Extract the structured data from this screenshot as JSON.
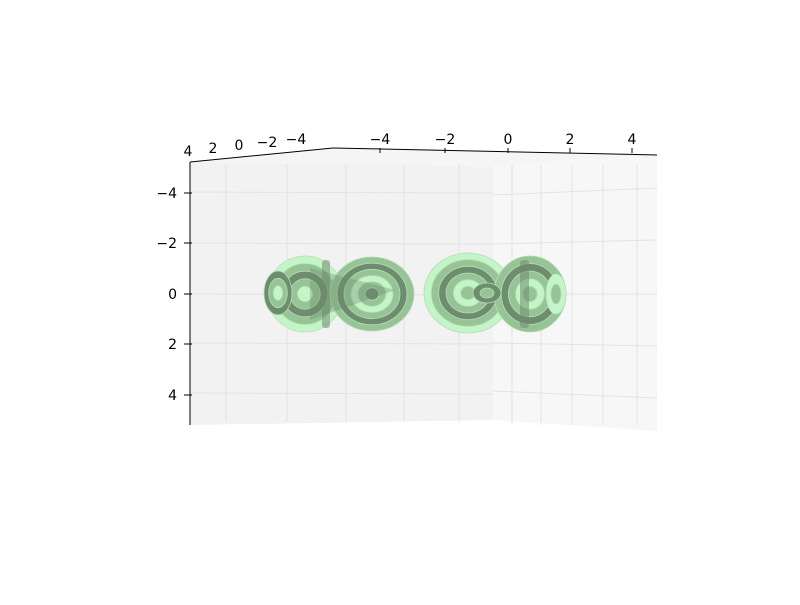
{
  "chart_data": {
    "type": "surface3d",
    "title": "",
    "xlabel": "",
    "ylabel": "",
    "zlabel": "",
    "grid": true,
    "pane_colors": {
      "left": "#f2f2f2",
      "right": "#f7f7f7",
      "grid": "#e3e3e3",
      "edge": "#000000"
    },
    "surface_colors": {
      "light": "#c3f5c8",
      "mid": "#97c497",
      "dark": "#6e8c6e",
      "edge": "#b6dcb6"
    },
    "axes": {
      "x_ticks": [
        "−4",
        "−2",
        "0",
        "2",
        "4"
      ],
      "y_ticks": [
        "4",
        "2",
        "0",
        "−2",
        "−4"
      ],
      "z_ticks": [
        "−4",
        "−2",
        "0",
        "2",
        "4"
      ],
      "x_range": [
        -5,
        5
      ],
      "y_range": [
        -5,
        5
      ],
      "z_range": [
        -5,
        5
      ]
    },
    "surfaces": [
      {
        "name": "",
        "shape": "double-lobed body of revolution",
        "axis": "horizontal",
        "x_center": -3.0,
        "z_center": 0,
        "extent": [
          -5.2,
          -0.8
        ]
      },
      {
        "name": "",
        "shape": "double-lobed body of revolution",
        "axis": "horizontal",
        "x_center": 2.5,
        "z_center": 0,
        "extent": [
          0.5,
          4.5
        ]
      }
    ]
  }
}
